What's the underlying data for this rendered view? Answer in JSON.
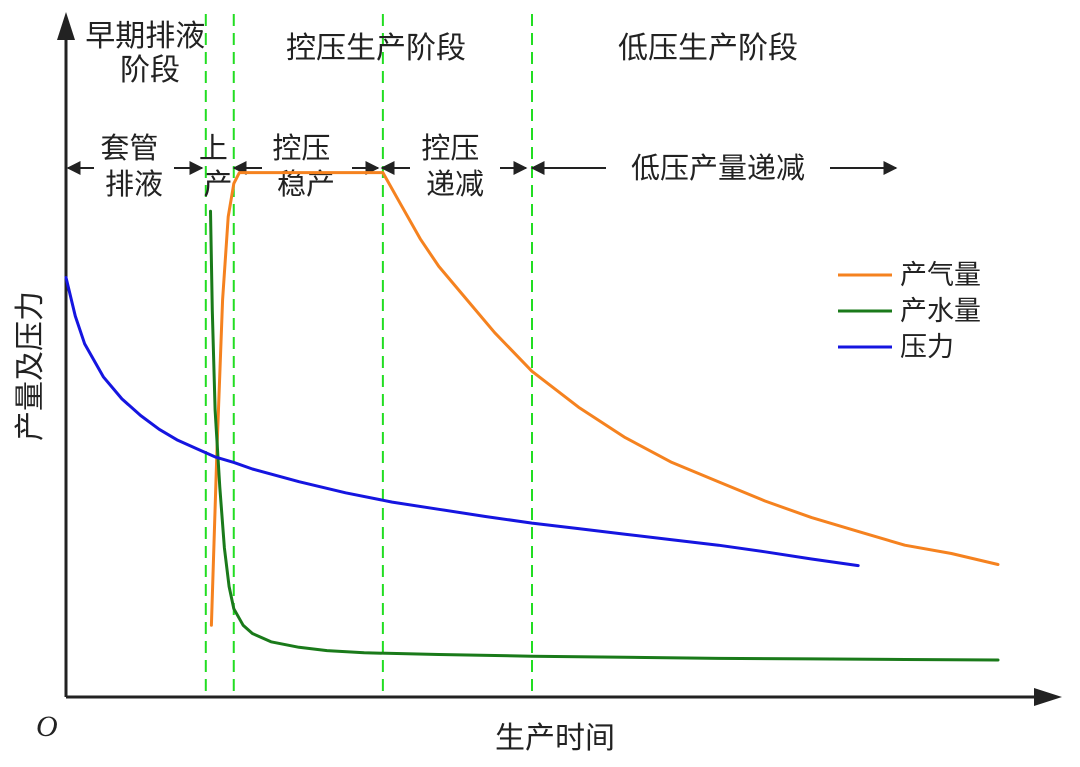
{
  "chart_data": {
    "type": "line",
    "xlabel": "生产时间",
    "ylabel": "产量及压力",
    "origin_label": "O",
    "grid": false,
    "legend_position": "right",
    "colors": {
      "gas": "#f5821f",
      "water": "#1a7a1a",
      "pressure": "#1515e0",
      "divider": "#22dd22",
      "axis": "#222222"
    },
    "stages": [
      "早期排液\n阶段",
      "控压生产阶段",
      "低压生产阶段"
    ],
    "sub_stages": [
      "套管\n排液",
      "上\n产",
      "控压\n稳产",
      "控压\n递减",
      "低压产量递减"
    ],
    "boundaries": [
      0.15,
      0.18,
      0.34,
      0.5
    ],
    "series": [
      {
        "name": "产气量",
        "key": "gas",
        "x": [
          0.156,
          0.162,
          0.168,
          0.174,
          0.18,
          0.186,
          0.34,
          0.36,
          0.38,
          0.4,
          0.43,
          0.46,
          0.5,
          0.55,
          0.6,
          0.65,
          0.7,
          0.75,
          0.8,
          0.85,
          0.9,
          0.95,
          1.0
        ],
        "y": [
          0.13,
          0.45,
          0.72,
          0.87,
          0.93,
          0.95,
          0.95,
          0.89,
          0.83,
          0.78,
          0.72,
          0.66,
          0.59,
          0.525,
          0.47,
          0.425,
          0.39,
          0.355,
          0.325,
          0.3,
          0.275,
          0.26,
          0.24
        ]
      },
      {
        "name": "产水量",
        "key": "water",
        "x": [
          0.155,
          0.157,
          0.16,
          0.165,
          0.17,
          0.175,
          0.18,
          0.19,
          0.2,
          0.22,
          0.25,
          0.28,
          0.32,
          0.4,
          0.5,
          0.6,
          0.7,
          0.8,
          0.9,
          1.0
        ],
        "y": [
          0.88,
          0.7,
          0.52,
          0.38,
          0.27,
          0.2,
          0.16,
          0.13,
          0.115,
          0.1,
          0.09,
          0.084,
          0.08,
          0.077,
          0.074,
          0.072,
          0.07,
          0.069,
          0.068,
          0.067
        ]
      },
      {
        "name": "压力",
        "key": "pressure",
        "x": [
          0.0,
          0.01,
          0.02,
          0.04,
          0.06,
          0.08,
          0.1,
          0.12,
          0.14,
          0.16,
          0.18,
          0.2,
          0.25,
          0.3,
          0.35,
          0.4,
          0.45,
          0.5,
          0.55,
          0.6,
          0.65,
          0.7,
          0.75,
          0.8,
          0.85
        ],
        "y": [
          0.76,
          0.69,
          0.64,
          0.58,
          0.54,
          0.51,
          0.485,
          0.465,
          0.45,
          0.435,
          0.425,
          0.413,
          0.39,
          0.37,
          0.353,
          0.34,
          0.327,
          0.315,
          0.305,
          0.295,
          0.285,
          0.275,
          0.263,
          0.25,
          0.238
        ]
      }
    ]
  }
}
